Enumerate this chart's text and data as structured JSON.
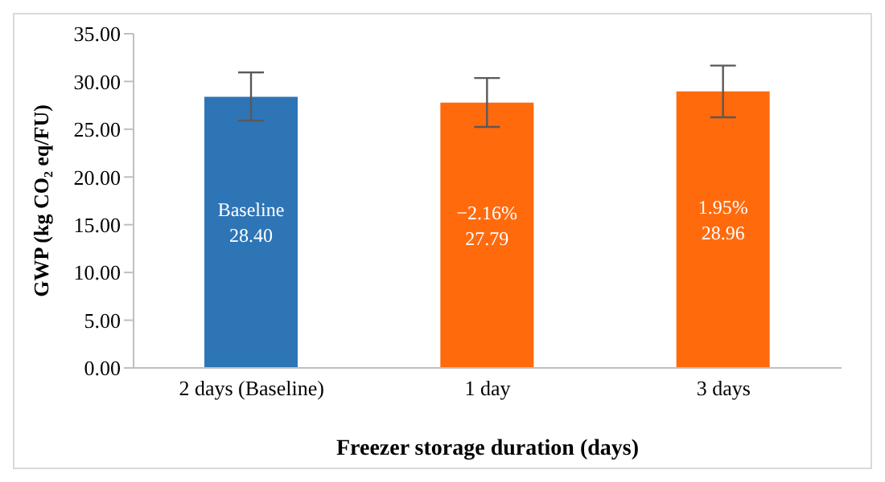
{
  "chart_data": {
    "type": "bar",
    "xlabel": "Freezer storage duration (days)",
    "ylabel": "GWP (kg CO₂ eq/FU)",
    "categories": [
      "2 days (Baseline)",
      "1 day",
      "3 days"
    ],
    "values": [
      28.4,
      27.79,
      28.96
    ],
    "colors": [
      "#2e75b6",
      "#ff6a0d",
      "#ff6a0d"
    ],
    "errors": [
      [
        25.9,
        30.95
      ],
      [
        25.24,
        30.36
      ],
      [
        26.25,
        31.67
      ]
    ],
    "value_labels": [
      "28.40",
      "27.79",
      "28.96"
    ],
    "annotations": [
      "Baseline",
      "−2.16%",
      "1.95%"
    ],
    "ylim": [
      0,
      35
    ],
    "yticks": [
      {
        "value": 0,
        "label": "0.00"
      },
      {
        "value": 5,
        "label": "5.00"
      },
      {
        "value": 10,
        "label": "10.00"
      },
      {
        "value": 15,
        "label": "15.00"
      },
      {
        "value": 20,
        "label": "20.00"
      },
      {
        "value": 25,
        "label": "25.00"
      },
      {
        "value": 30,
        "label": "30.00"
      },
      {
        "value": 35,
        "label": "35.00"
      }
    ]
  }
}
